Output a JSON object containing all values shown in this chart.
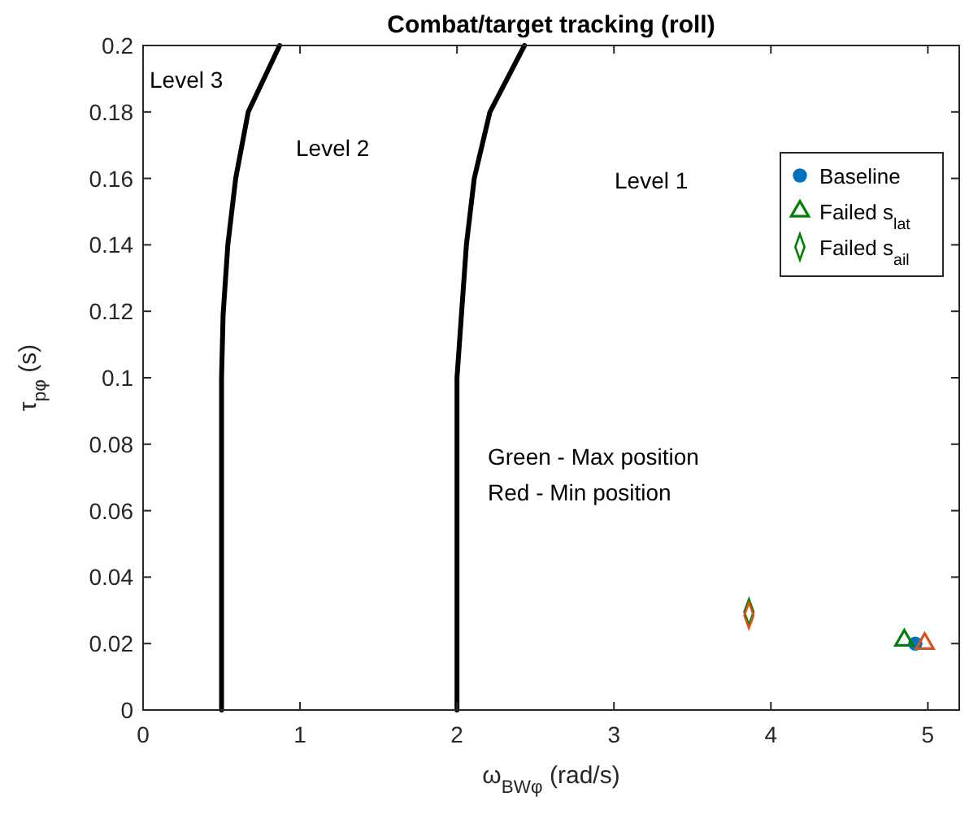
{
  "chart_data": {
    "type": "scatter",
    "title": "Combat/target tracking (roll)",
    "xlabel": "ω$_{BWφ}$ (rad/s)",
    "ylabel": "τ$_{pφ}$ (s)",
    "xlim": [
      0,
      5.2
    ],
    "ylim": [
      0,
      0.2
    ],
    "xticks": [
      0,
      1,
      2,
      3,
      4,
      5
    ],
    "yticks": [
      0,
      0.02,
      0.04,
      0.06,
      0.08,
      0.1,
      0.12,
      0.14,
      0.16,
      0.18,
      0.2
    ],
    "legend": "top right",
    "grid": false,
    "annotations": [
      "Level 3",
      "Level 2",
      "Level 1",
      "Green - Max position",
      "Red - Min position"
    ],
    "series": [
      {
        "type": "line",
        "color": "#000000",
        "marker": "none",
        "line_style": "solid",
        "x": [
          0.5,
          0.5,
          0.51,
          0.54,
          0.59,
          0.67,
          0.87
        ],
        "values": [
          0,
          0.1,
          0.119,
          0.14,
          0.16,
          0.18,
          0.2
        ]
      },
      {
        "type": "line",
        "color": "#000000",
        "marker": "none",
        "line_style": "solid",
        "x": [
          2,
          2,
          2.03,
          2.06,
          2.11,
          2.21,
          2.43
        ],
        "values": [
          0,
          0.1,
          0.12,
          0.14,
          0.16,
          0.18,
          0.2
        ]
      },
      {
        "name": "Baseline",
        "color": "#0072bd",
        "marker": "circle",
        "x": [
          4.92
        ],
        "values": [
          0.02
        ]
      },
      {
        "name": "Failed s$_{lat}$",
        "color": "#008000",
        "marker": "triangle",
        "x": [
          4.85
        ],
        "values": [
          0.021
        ]
      },
      {
        "name": "Failed s$_{ail}$",
        "color": "#008000",
        "marker": "diamond",
        "x": [
          3.86
        ],
        "values": [
          0.0295
        ]
      },
      {
        "color": "#d95319",
        "marker": "triangle",
        "x": [
          4.98
        ],
        "values": [
          0.02
        ]
      },
      {
        "color": "#d95319",
        "marker": "diamond",
        "x": [
          3.86
        ],
        "values": [
          0.0285
        ]
      }
    ]
  }
}
